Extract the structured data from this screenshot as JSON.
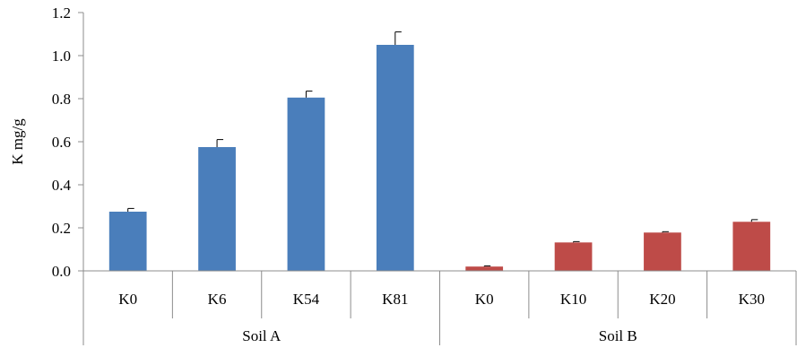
{
  "chart_data": {
    "type": "bar",
    "ylabel": "K mg/g",
    "ylim": [
      0,
      1.2
    ],
    "yticks": [
      "0.0",
      "0.2",
      "0.4",
      "0.6",
      "0.8",
      "1.0",
      "1.2"
    ],
    "grid": false,
    "groups": [
      {
        "name": "Soil A",
        "color": "#4a7ebb",
        "categories": [
          "K0",
          "K6",
          "K54",
          "K81"
        ],
        "values": [
          0.275,
          0.575,
          0.805,
          1.05
        ],
        "errors": [
          0.015,
          0.035,
          0.03,
          0.06
        ]
      },
      {
        "name": "Soil B",
        "color": "#be4b48",
        "categories": [
          "K0",
          "K10",
          "K20",
          "K30"
        ],
        "values": [
          0.02,
          0.132,
          0.178,
          0.228
        ],
        "errors": [
          0.003,
          0.004,
          0.004,
          0.01
        ]
      }
    ]
  }
}
